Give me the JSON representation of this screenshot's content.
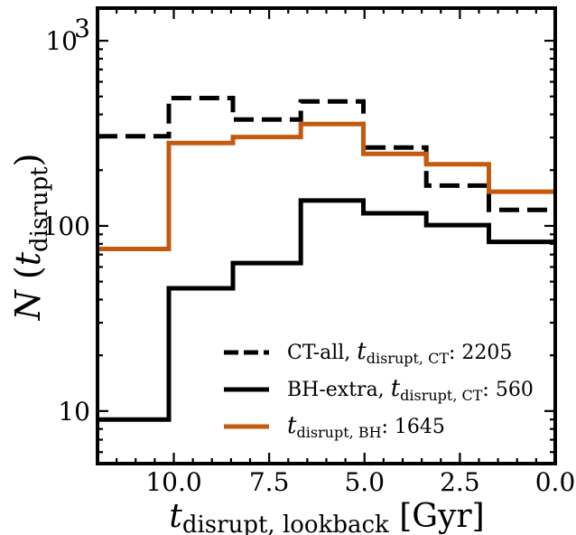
{
  "chart_data": {
    "type": "step",
    "x_unit_ticks": [
      "10.0",
      "7.5",
      "5.0",
      "2.5",
      "0.0"
    ],
    "x_ticks": [
      10.0,
      7.5,
      5.0,
      2.5,
      0.0
    ],
    "xlim": [
      12.0,
      0.0
    ],
    "x_inverted": true,
    "y_scale": "log",
    "ylim": [
      5.2,
      1500
    ],
    "y_ticks": [
      10,
      100,
      1000
    ],
    "y_tick_labels": [
      {
        "base": "10",
        "exp": ""
      },
      {
        "base": "100",
        "exp": ""
      },
      {
        "base": "10",
        "exp": "3"
      }
    ],
    "xlabel": {
      "main": "t",
      "sub": "disrupt, lookback",
      "unit": " [Gyr]"
    },
    "ylabel": {
      "main": "N",
      "open": " (",
      "var": "t",
      "sub": "disrupt",
      "close": ")"
    },
    "bin_edges": [
      12.0,
      10.13,
      8.45,
      6.67,
      5.03,
      3.38,
      1.74,
      0.0
    ],
    "series": [
      {
        "key": "ct_all",
        "label_pre": "CT-all, ",
        "label_var": "t",
        "label_sub": "disrupt, CT",
        "label_post": ": 2205",
        "color": "#000000",
        "dash": "dashed",
        "values": [
          305,
          490,
          375,
          470,
          265,
          165,
          122
        ]
      },
      {
        "key": "bh_extra",
        "label_pre": "BH-extra, ",
        "label_var": "t",
        "label_sub": "disrupt, CT",
        "label_post": ": 560",
        "color": "#000000",
        "dash": "solid",
        "values": [
          9,
          46,
          63,
          137,
          117,
          101,
          82
        ]
      },
      {
        "key": "bh",
        "label_pre": "",
        "label_var": "t",
        "label_sub": "disrupt, BH",
        "label_post": ": 1645",
        "color": "#c35a0e",
        "dash": "solid",
        "values": [
          75,
          280,
          302,
          355,
          245,
          215,
          153
        ]
      }
    ],
    "legend_position": "lower-right",
    "grid": false
  }
}
